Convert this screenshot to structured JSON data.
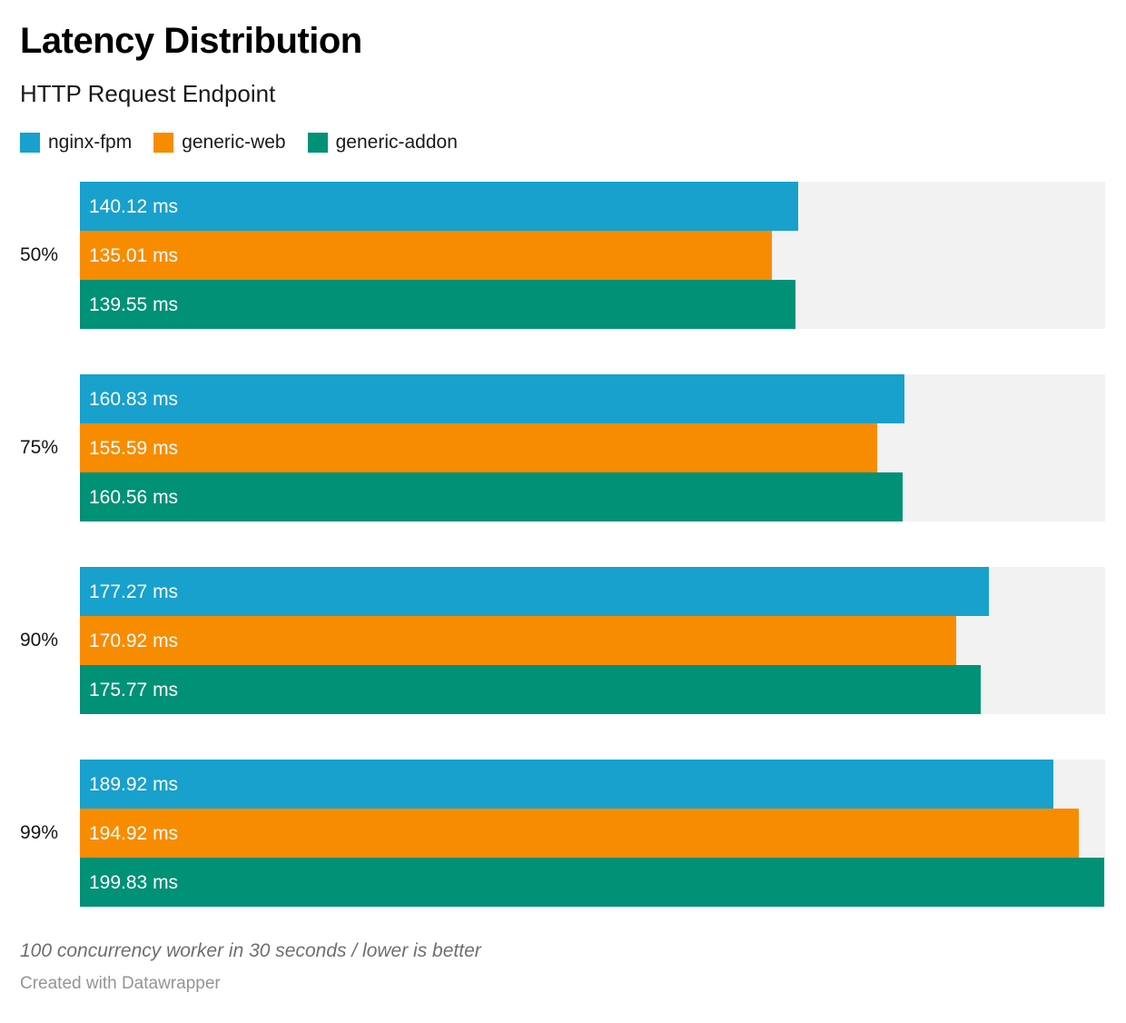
{
  "header": {
    "title": "Latency Distribution",
    "subtitle": "HTTP Request Endpoint"
  },
  "legend": [
    {
      "label": "nginx-fpm",
      "color": "#18a1cd"
    },
    {
      "label": "generic-web",
      "color": "#f88c00"
    },
    {
      "label": "generic-addon",
      "color": "#009177"
    }
  ],
  "chart_data": {
    "type": "bar",
    "orientation": "horizontal",
    "title": "Latency Distribution",
    "subtitle": "HTTP Request Endpoint",
    "categories": [
      "50%",
      "75%",
      "90%",
      "99%"
    ],
    "series": [
      {
        "name": "nginx-fpm",
        "color": "#18a1cd",
        "values": [
          140.12,
          160.83,
          177.27,
          189.92
        ]
      },
      {
        "name": "generic-web",
        "color": "#f88c00",
        "values": [
          135.01,
          155.59,
          170.92,
          194.92
        ]
      },
      {
        "name": "generic-addon",
        "color": "#009177",
        "values": [
          139.55,
          160.56,
          175.77,
          199.83
        ]
      }
    ],
    "value_unit": "ms",
    "value_labels": [
      [
        "140.12 ms",
        "160.83 ms",
        "177.27 ms",
        "189.92 ms"
      ],
      [
        "135.01 ms",
        "155.59 ms",
        "170.92 ms",
        "194.92 ms"
      ],
      [
        "139.55 ms",
        "160.56 ms",
        "175.77 ms",
        "199.83 ms"
      ]
    ],
    "xlim": [
      0,
      200
    ],
    "track_color": "#f2f2f2",
    "grid": false,
    "legend_position": "top"
  },
  "footer": {
    "note": "100 concurrency worker in 30 seconds / lower is better",
    "credit": "Created with Datawrapper"
  }
}
